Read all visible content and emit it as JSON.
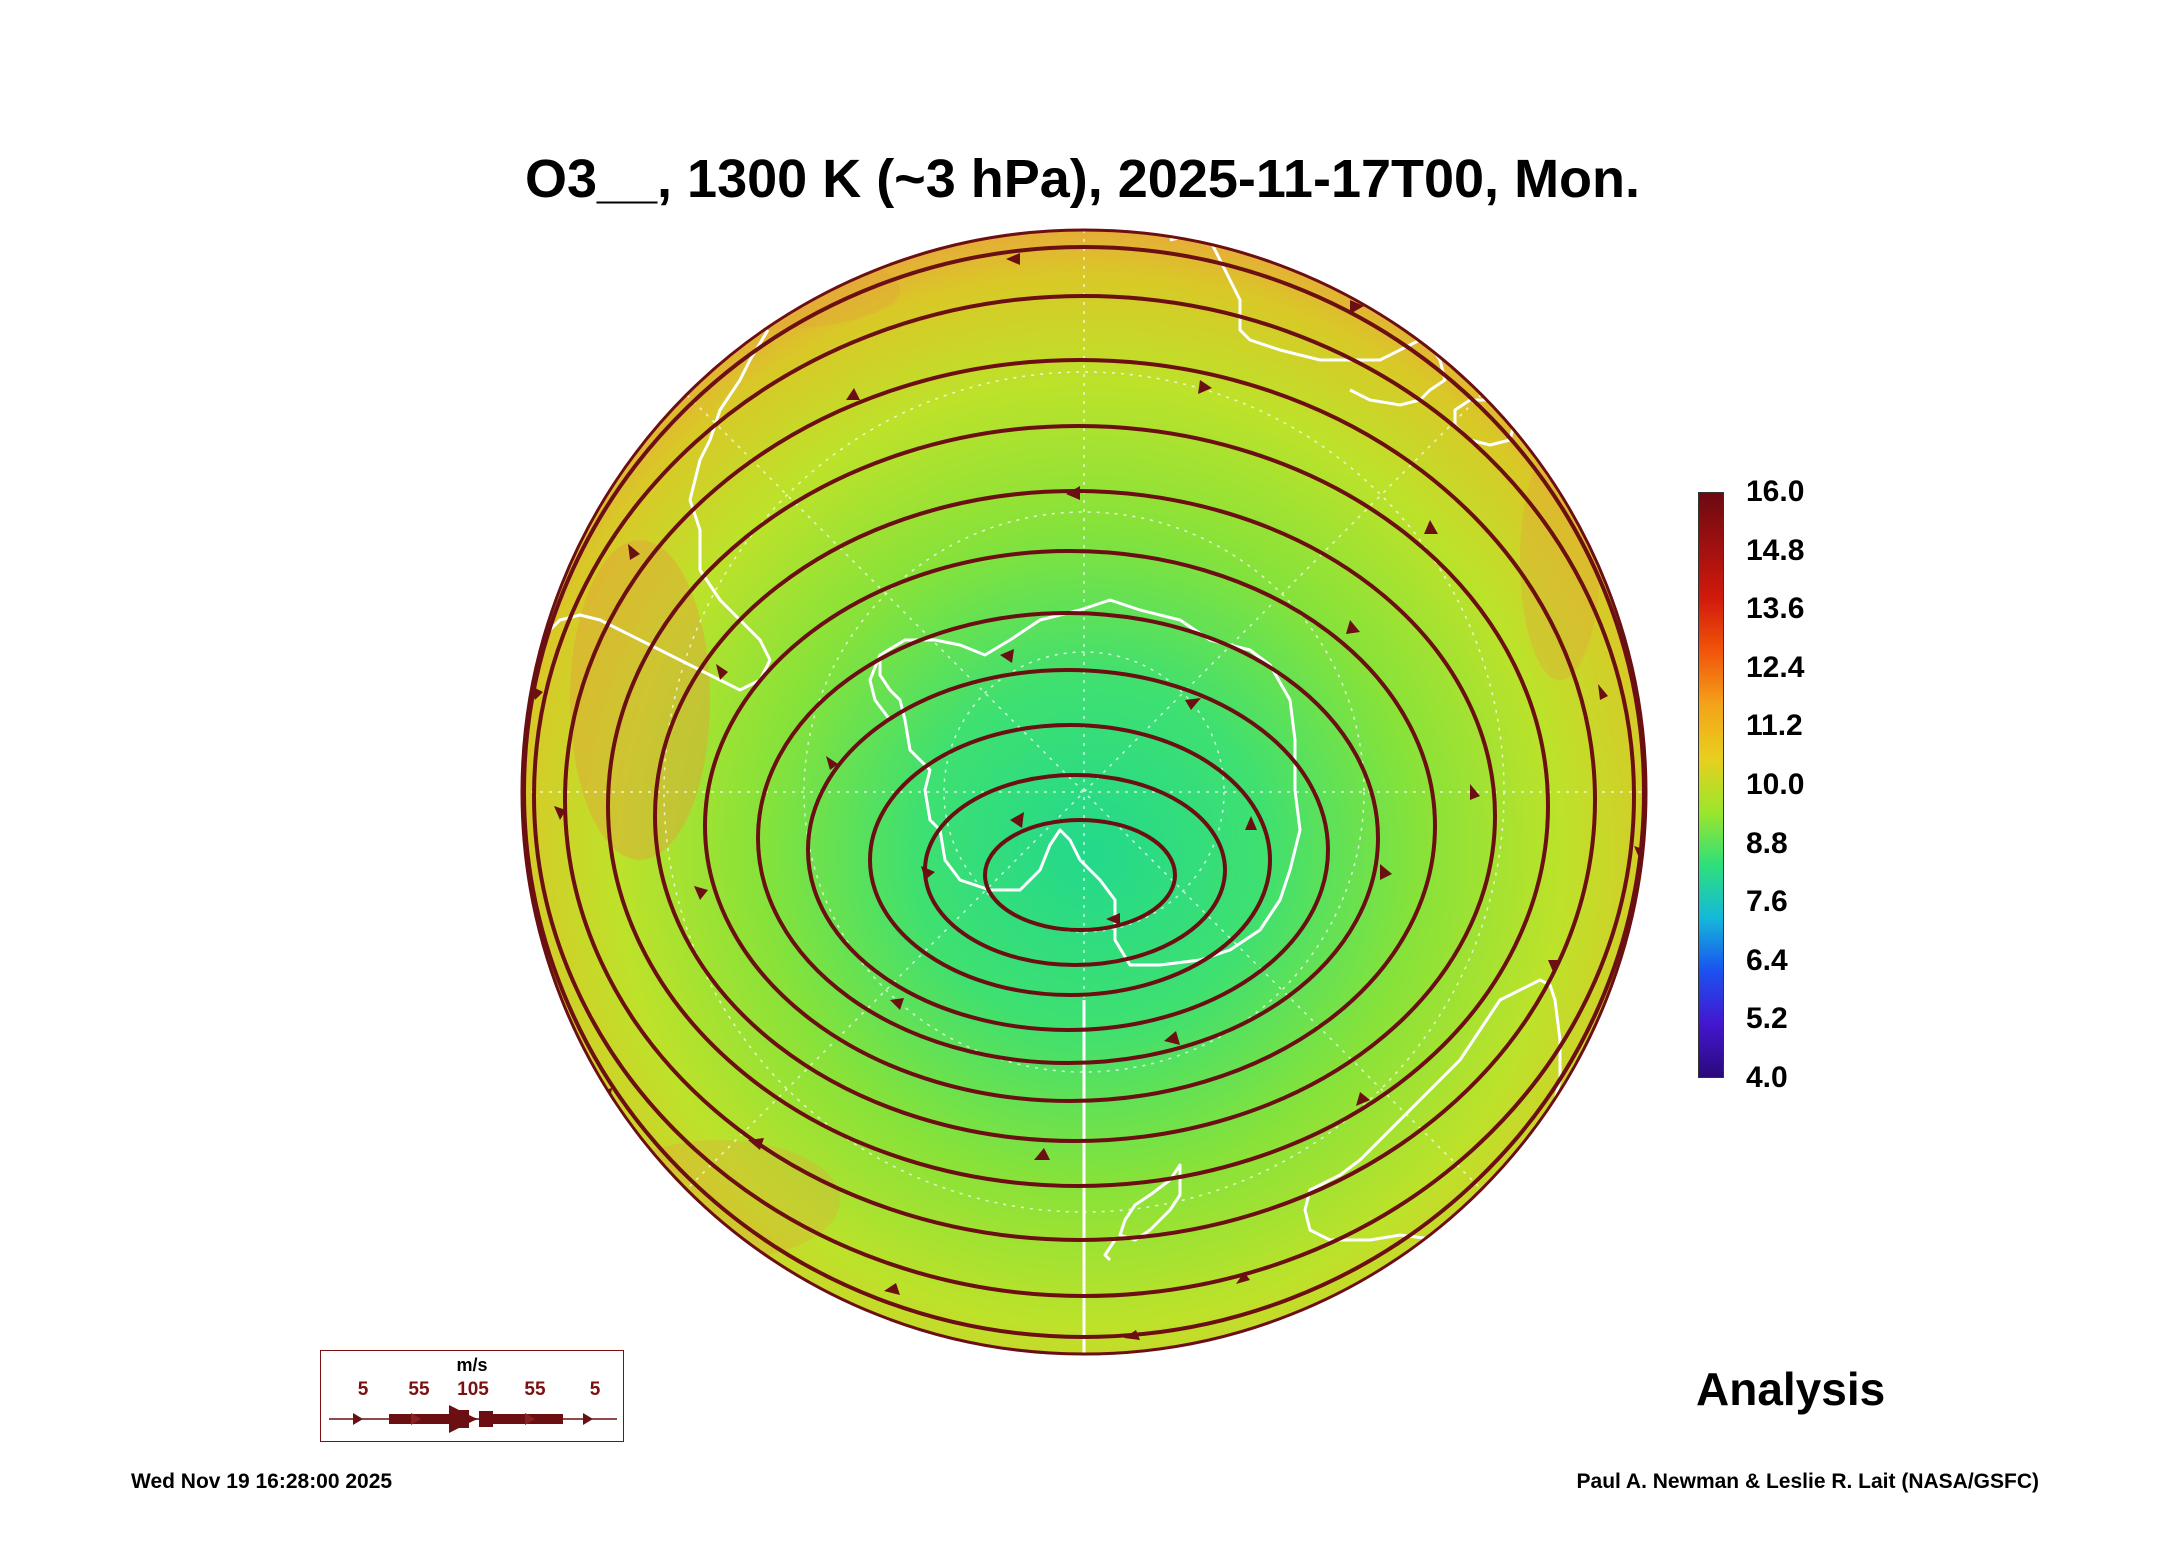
{
  "title": "O3__, 1300 K (~3 hPa), 2025-11-17T00, Mon.",
  "map": {
    "projection": "orthographic polar view",
    "field": "O3__",
    "overlay": "streamlines with arrows",
    "coastline_color": "#ffffff",
    "streamline_color": "#6b0f12"
  },
  "colorbar": {
    "ticks": [
      "16.0",
      "14.8",
      "13.6",
      "12.4",
      "11.2",
      "10.0",
      "8.8",
      "7.6",
      "6.4",
      "5.2",
      "4.0"
    ],
    "colors": [
      "#6b0a10",
      "#a01010",
      "#d21a0c",
      "#f2560a",
      "#f4a31a",
      "#e8cf1e",
      "#9ce62c",
      "#2ee07a",
      "#14b9d8",
      "#1a52f0",
      "#4416d0",
      "#2a0a7a"
    ],
    "min": 4.0,
    "max": 16.0
  },
  "legend": {
    "unit": "m/s",
    "values": [
      "5",
      "55",
      "105",
      "55",
      "5"
    ]
  },
  "label_analysis": "Analysis",
  "footer": {
    "timestamp": "Wed Nov 19 16:28:00 2025",
    "credit": "Paul A. Newman & Leslie R. Lait (NASA/GSFC)"
  }
}
